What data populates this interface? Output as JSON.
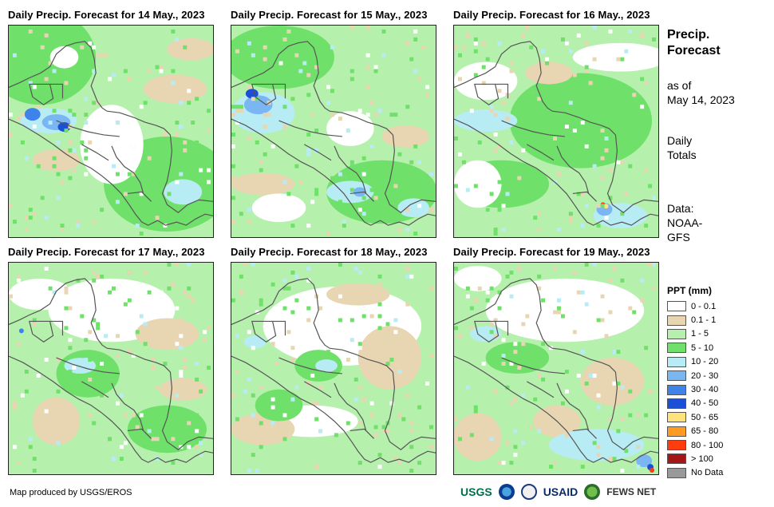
{
  "panels": [
    {
      "title": "Daily Precip. Forecast for 14 May., 2023"
    },
    {
      "title": "Daily Precip. Forecast for 15 May., 2023"
    },
    {
      "title": "Daily Precip. Forecast for 16 May., 2023"
    },
    {
      "title": "Daily Precip. Forecast for 17 May., 2023"
    },
    {
      "title": "Daily Precip. Forecast for 18 May., 2023"
    },
    {
      "title": "Daily Precip. Forecast for 19 May., 2023"
    }
  ],
  "sidebar": {
    "heading_line1": "Precip.",
    "heading_line2": "Forecast",
    "asof_line1": "as of",
    "asof_line2": "May 14, 2023",
    "totals_line1": "Daily",
    "totals_line2": "Totals",
    "data_line1": "Data:",
    "data_line2": "NOAA-",
    "data_line3": "GFS"
  },
  "legend": {
    "title": "PPT (mm)",
    "items": [
      {
        "label": "0 - 0.1",
        "color": "#ffffff"
      },
      {
        "label": "0.1 - 1",
        "color": "#e8d6b3"
      },
      {
        "label": "1 - 5",
        "color": "#b6f0ad"
      },
      {
        "label": "5 - 10",
        "color": "#6fe06a"
      },
      {
        "label": "10 - 20",
        "color": "#b8ecf5"
      },
      {
        "label": "20 - 30",
        "color": "#7ab6f2"
      },
      {
        "label": "30 - 40",
        "color": "#3e83ea"
      },
      {
        "label": "40 - 50",
        "color": "#1a4fd6"
      },
      {
        "label": "50 - 65",
        "color": "#ffe37a"
      },
      {
        "label": "65 - 80",
        "color": "#ff9b21"
      },
      {
        "label": "80 - 100",
        "color": "#ff3b10"
      },
      {
        "label": "> 100",
        "color": "#a51616"
      },
      {
        "label": "No Data",
        "color": "#999999"
      }
    ]
  },
  "footer": {
    "credit": "Map produced by USGS/EROS",
    "logo_usgs": "USGS",
    "logo_usaid": "USAID",
    "logo_fews": "FEWS NET"
  }
}
